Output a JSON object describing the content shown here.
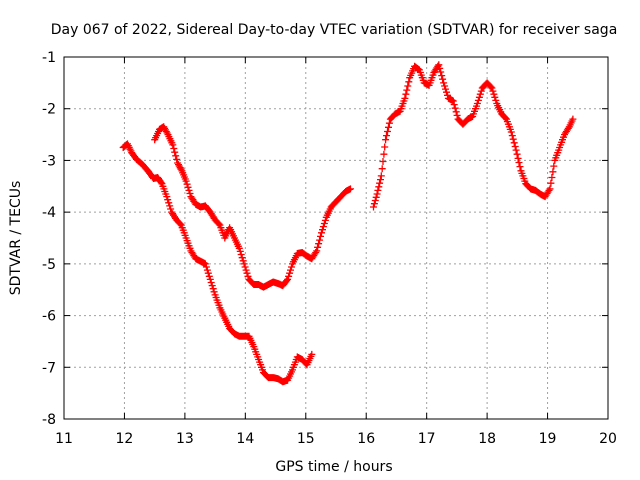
{
  "chart_data": {
    "type": "scatter",
    "title": "Day 067 of 2022, Sidereal Day-to-day VTEC variation (SDTVAR) for receiver saga",
    "xlabel": "GPS time / hours",
    "ylabel": "SDTVAR / TECUs",
    "xlim": [
      11,
      20
    ],
    "ylim": [
      -8,
      -1
    ],
    "xticks": [
      11,
      12,
      13,
      14,
      15,
      16,
      17,
      18,
      19,
      20
    ],
    "yticks": [
      -1,
      -2,
      -3,
      -4,
      -5,
      -6,
      -7,
      -8
    ],
    "grid": true,
    "marker": "plus",
    "color": "#ff0000",
    "series": [
      {
        "x": [
          11.98,
          12.05,
          12.12,
          12.2,
          12.3,
          12.4,
          12.48,
          12.55,
          12.62,
          12.7,
          12.78,
          12.86,
          12.94,
          13.02,
          13.1,
          13.18,
          13.26,
          13.34,
          13.42,
          13.5,
          13.58,
          13.66,
          13.74,
          13.82,
          13.9,
          13.98,
          14.06,
          14.14,
          14.22,
          14.3,
          14.38,
          14.46,
          14.54,
          14.62,
          14.7,
          14.78,
          14.86,
          14.94,
          15.02,
          15.1
        ],
        "y": [
          -2.75,
          -2.68,
          -2.85,
          -2.98,
          -3.08,
          -3.22,
          -3.35,
          -3.33,
          -3.45,
          -3.7,
          -4.0,
          -4.15,
          -4.25,
          -4.5,
          -4.75,
          -4.9,
          -4.95,
          -5.0,
          -5.3,
          -5.6,
          -5.85,
          -6.05,
          -6.25,
          -6.35,
          -6.4,
          -6.4,
          -6.4,
          -6.6,
          -6.85,
          -7.1,
          -7.2,
          -7.2,
          -7.22,
          -7.28,
          -7.25,
          -7.05,
          -6.8,
          -6.85,
          -6.95,
          -6.75
        ]
      },
      {
        "x": [
          12.5,
          12.58,
          12.65,
          12.72,
          12.8,
          12.88,
          12.95,
          13.02,
          13.1,
          13.18,
          13.26,
          13.34,
          13.42,
          13.5,
          13.58,
          13.66,
          13.74,
          13.82,
          13.9,
          13.98,
          14.06,
          14.14,
          14.22,
          14.3,
          14.38,
          14.46,
          14.54,
          14.62,
          14.7,
          14.78,
          14.86,
          14.94,
          15.02,
          15.1,
          15.18,
          15.26,
          15.34,
          15.42,
          15.5,
          15.58,
          15.66,
          15.74
        ],
        "y": [
          -2.6,
          -2.4,
          -2.35,
          -2.5,
          -2.7,
          -3.05,
          -3.2,
          -3.4,
          -3.7,
          -3.85,
          -3.9,
          -3.88,
          -4.0,
          -4.15,
          -4.25,
          -4.5,
          -4.3,
          -4.5,
          -4.7,
          -5.0,
          -5.3,
          -5.4,
          -5.4,
          -5.45,
          -5.4,
          -5.35,
          -5.38,
          -5.42,
          -5.3,
          -5.0,
          -4.8,
          -4.78,
          -4.85,
          -4.9,
          -4.75,
          -4.4,
          -4.1,
          -3.9,
          -3.8,
          -3.7,
          -3.6,
          -3.55
        ]
      },
      {
        "x": [
          16.12,
          16.18,
          16.25,
          16.32,
          16.4,
          16.48,
          16.56,
          16.64,
          16.72,
          16.8,
          16.88,
          16.96,
          17.04,
          17.12,
          17.2,
          17.28,
          17.36,
          17.44,
          17.52,
          17.6,
          17.68,
          17.76,
          17.84,
          17.92,
          18.0,
          18.08,
          18.16,
          18.24,
          18.32,
          18.4,
          18.48,
          18.56,
          18.64,
          18.72,
          18.8,
          18.88,
          18.96,
          19.04,
          19.12,
          19.2,
          19.28,
          19.36,
          19.42
        ],
        "y": [
          -3.9,
          -3.65,
          -3.3,
          -2.6,
          -2.2,
          -2.1,
          -2.05,
          -1.8,
          -1.4,
          -1.18,
          -1.25,
          -1.5,
          -1.55,
          -1.3,
          -1.15,
          -1.5,
          -1.8,
          -1.85,
          -2.2,
          -2.3,
          -2.2,
          -2.15,
          -1.9,
          -1.6,
          -1.5,
          -1.6,
          -1.9,
          -2.1,
          -2.2,
          -2.45,
          -2.8,
          -3.2,
          -3.45,
          -3.55,
          -3.58,
          -3.65,
          -3.7,
          -3.55,
          -3.0,
          -2.75,
          -2.5,
          -2.35,
          -2.2
        ]
      }
    ]
  }
}
